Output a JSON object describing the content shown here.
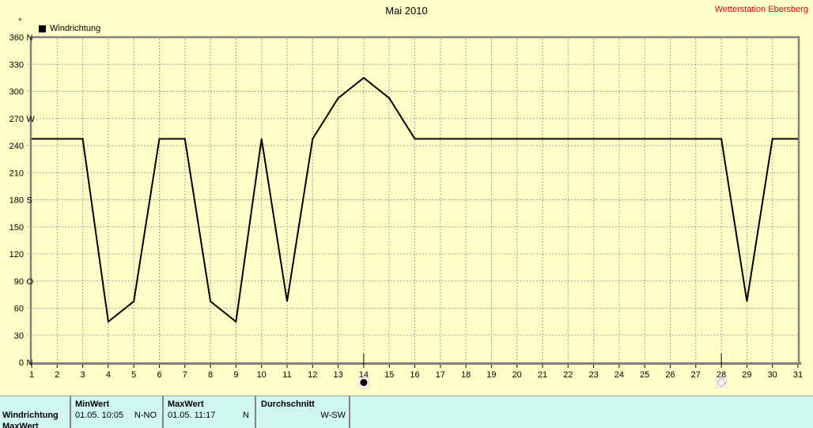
{
  "window": {
    "title": "Mai 2010",
    "station_label": "Wetterstation Ebersberg",
    "station_color": "#dd0000",
    "y_unit_label": "°"
  },
  "legend": {
    "label": "Windrichtung",
    "swatch_color": "#000000"
  },
  "chart_data": {
    "type": "line",
    "title": "Mai 2010",
    "xlabel": "",
    "ylabel": "°",
    "ylim": [
      0,
      360
    ],
    "y_tick_step": 30,
    "compass_labels": {
      "0": "N",
      "90": "O",
      "180": "S",
      "270": "W",
      "360": "N"
    },
    "grid": "dashed",
    "legend_position": "top-left",
    "x": [
      1,
      2,
      3,
      4,
      5,
      6,
      7,
      8,
      9,
      10,
      11,
      12,
      13,
      14,
      15,
      16,
      17,
      18,
      19,
      20,
      21,
      22,
      23,
      24,
      25,
      26,
      27,
      28,
      29,
      30,
      31
    ],
    "series": [
      {
        "name": "Windrichtung",
        "color": "#000000",
        "values": [
          247.5,
          247.5,
          247.5,
          45,
          67.5,
          247.5,
          247.5,
          67.5,
          45,
          247.5,
          67.5,
          247.5,
          292.5,
          315,
          292.5,
          247.5,
          247.5,
          247.5,
          247.5,
          247.5,
          247.5,
          247.5,
          247.5,
          247.5,
          247.5,
          247.5,
          247.5,
          247.5,
          67.5,
          247.5,
          247.5
        ]
      }
    ],
    "moon_phases": [
      {
        "day": 14,
        "symbol": "new-moon"
      },
      {
        "day": 28,
        "symbol": "full-moon"
      }
    ],
    "colors": {
      "background": "#ffffc8",
      "grid": "#9c9c9c",
      "axis": "#808080",
      "line": "#000000"
    }
  },
  "stats_table": {
    "background": "#d0f7f0",
    "row_label": "Windrichtung",
    "min": {
      "header": "MinWert",
      "datetime": "01.05. 10:05",
      "value": "N-NO"
    },
    "max": {
      "header": "MaxWert",
      "datetime": "01.05. 11:17",
      "value": "N"
    },
    "avg": {
      "header": "Durchschnitt",
      "value": "W-SW"
    },
    "next_row_label_clipped": "MaxWert"
  }
}
